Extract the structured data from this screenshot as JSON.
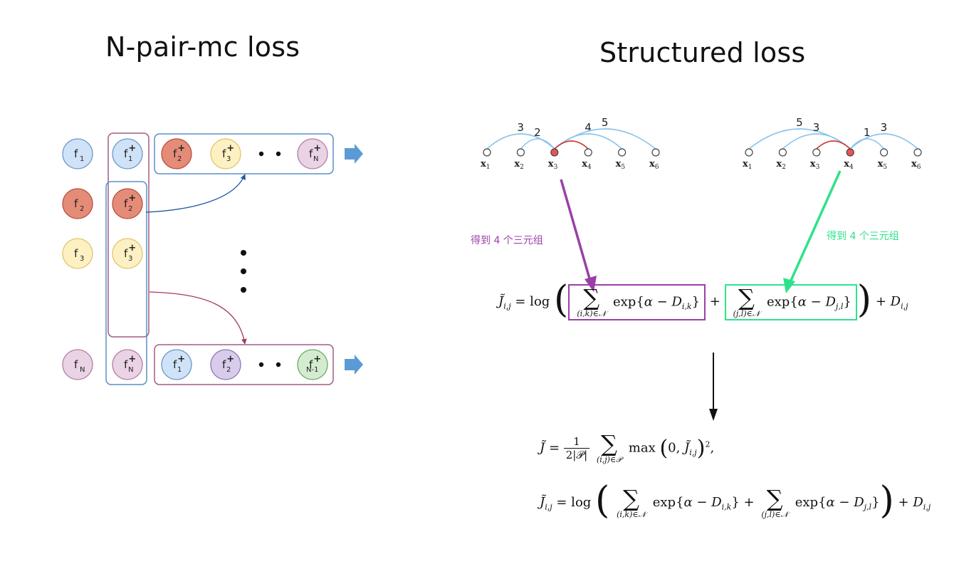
{
  "left": {
    "title": "N-pair-mc loss",
    "col_f": [
      {
        "base": "f",
        "sub": "1",
        "color": "#cfe2f7",
        "stroke": "#6b97c9"
      },
      {
        "base": "f",
        "sub": "2",
        "color": "#e58c79",
        "stroke": "#b5503e"
      },
      {
        "base": "f",
        "sub": "3",
        "color": "#fdf0c2",
        "stroke": "#e0c56a"
      },
      {
        "base": "f",
        "sub": "N",
        "color": "#ead3e4",
        "stroke": "#b27ea4"
      }
    ],
    "col_fplus": [
      {
        "base": "f",
        "sup": "+",
        "sub": "1",
        "color": "#cfe2f7",
        "stroke": "#6b97c9"
      },
      {
        "base": "f",
        "sup": "+",
        "sub": "2",
        "color": "#e58c79",
        "stroke": "#b5503e"
      },
      {
        "base": "f",
        "sup": "+",
        "sub": "3",
        "color": "#fdf0c2",
        "stroke": "#e0c56a"
      },
      {
        "base": "f",
        "sup": "+",
        "sub": "N",
        "color": "#ead3e4",
        "stroke": "#b27ea4"
      }
    ],
    "top_row": [
      {
        "base": "f",
        "sup": "+",
        "sub": "2",
        "color": "#e58c79",
        "stroke": "#b5503e"
      },
      {
        "base": "f",
        "sup": "+",
        "sub": "3",
        "color": "#fdf0c2",
        "stroke": "#e0c56a"
      },
      {
        "base": "f",
        "sup": "+",
        "sub": "N",
        "color": "#ead3e4",
        "stroke": "#b27ea4"
      }
    ],
    "bottom_row": [
      {
        "base": "f",
        "sup": "+",
        "sub": "1",
        "color": "#cfe2f7",
        "stroke": "#6b97c9"
      },
      {
        "base": "f",
        "sup": "+",
        "sub": "2",
        "color": "#d8cbeb",
        "stroke": "#8e76b8"
      },
      {
        "base": "f",
        "sup": "+",
        "sub": "N-1",
        "color": "#d3ecd0",
        "stroke": "#6fa867"
      }
    ],
    "colors": {
      "blue_box": "#5b8fc8",
      "purple_box": "#a35b86",
      "arrow_fill": "#5b9bd5",
      "curve_blue": "#1f5aa0",
      "curve_red": "#a33c5c"
    }
  },
  "right": {
    "title": "Structured loss",
    "graph1": {
      "nodes": [
        "x1",
        "x2",
        "x3",
        "x4",
        "x5",
        "x6"
      ],
      "labels": [
        {
          "base": "x",
          "sub": "1"
        },
        {
          "base": "x",
          "sub": "2"
        },
        {
          "base": "x",
          "sub": "3"
        },
        {
          "base": "x",
          "sub": "4"
        },
        {
          "base": "x",
          "sub": "5"
        },
        {
          "base": "x",
          "sub": "6"
        }
      ],
      "highlight": 2,
      "positive_edge": {
        "from": 2,
        "to": 3
      },
      "negative_edges": [
        {
          "from": 0,
          "to": 2,
          "weight": "3"
        },
        {
          "from": 1,
          "to": 2,
          "weight": "2"
        },
        {
          "from": 2,
          "to": 4,
          "weight": "4"
        },
        {
          "from": 2,
          "to": 5,
          "weight": "5"
        }
      ]
    },
    "graph2": {
      "nodes": [
        "x1",
        "x2",
        "x3",
        "x4",
        "x5",
        "x6"
      ],
      "labels": [
        {
          "base": "x",
          "sub": "1"
        },
        {
          "base": "x",
          "sub": "2"
        },
        {
          "base": "x",
          "sub": "3"
        },
        {
          "base": "x",
          "sub": "4"
        },
        {
          "base": "x",
          "sub": "5"
        },
        {
          "base": "x",
          "sub": "6"
        }
      ],
      "highlight": 3,
      "positive_edge": {
        "from": 2,
        "to": 3
      },
      "negative_edges": [
        {
          "from": 0,
          "to": 3,
          "weight": "5"
        },
        {
          "from": 1,
          "to": 3,
          "weight": "3"
        },
        {
          "from": 3,
          "to": 4,
          "weight": "1"
        },
        {
          "from": 3,
          "to": 5,
          "weight": "3"
        }
      ]
    },
    "note_left": "得到 4 个三元组",
    "note_right": "得到 4 个三元组",
    "colors": {
      "purple": "#9b3fa8",
      "green": "#2ee28a",
      "edge_blue": "#8cc4ec",
      "edge_red": "#d03a3a",
      "node_red": "#e85454"
    }
  }
}
